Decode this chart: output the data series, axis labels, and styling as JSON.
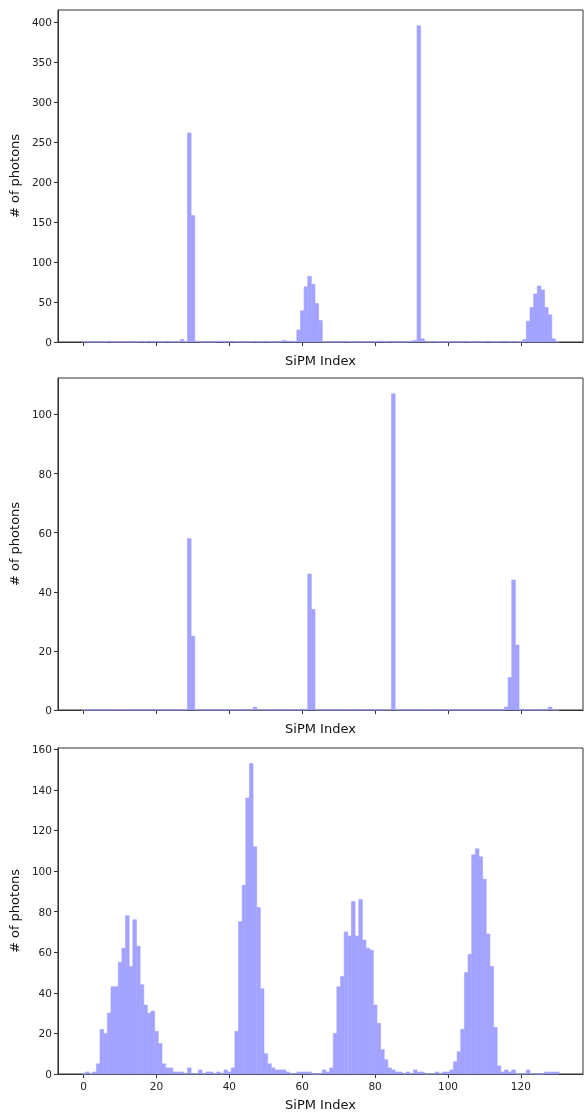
{
  "chart_data": [
    {
      "type": "histogram",
      "xlabel": "SiPM Index",
      "ylabel": "# of photons",
      "color": "#a3a3ff",
      "grid": false,
      "tick_labels": "y",
      "xlim": [
        -7.05,
        137.05
      ],
      "xticks": [
        0,
        20,
        40,
        60,
        80,
        100,
        120
      ],
      "ylim": [
        0,
        414.75
      ],
      "yticks": [
        0,
        50,
        100,
        150,
        200,
        250,
        300,
        350,
        400
      ],
      "bins": [
        -0.5,
        0.5,
        1.5,
        2.5,
        3.5,
        4.5,
        5.5,
        6.5,
        7.5,
        8.5,
        9.5,
        10.5,
        11.5,
        12.5,
        13.5,
        14.5,
        15.5,
        16.5,
        17.5,
        18.5,
        19.5,
        20.5,
        21.5,
        22.5,
        23.5,
        24.5,
        25.5,
        26.5,
        27.5,
        28.5,
        29.5,
        30.5,
        31.5,
        32.5,
        33.5,
        34.5,
        35.5,
        36.5,
        37.5,
        38.5,
        39.5,
        40.5,
        41.5,
        42.5,
        43.5,
        44.5,
        45.5,
        46.5,
        47.5,
        48.5,
        49.5,
        50.5,
        51.5,
        52.5,
        53.5,
        54.5,
        55.5,
        56.5,
        57.5,
        58.5,
        59.5,
        60.5,
        61.5,
        62.5,
        63.5,
        64.5,
        65.5,
        66.5,
        67.5,
        68.5,
        69.5,
        70.5,
        71.5,
        72.5,
        73.5,
        74.5,
        75.5,
        76.5,
        77.5,
        78.5,
        79.5,
        80.5,
        81.5,
        82.5,
        83.5,
        84.5,
        85.5,
        86.5,
        87.5,
        88.5,
        89.5,
        90.5,
        91.5,
        92.5,
        93.5,
        94.5,
        95.5,
        96.5,
        97.5,
        98.5,
        99.5,
        100.5,
        101.5,
        102.5,
        103.5,
        104.5,
        105.5,
        106.5,
        107.5,
        108.5,
        109.5,
        110.5,
        111.5,
        112.5,
        113.5,
        114.5,
        115.5,
        116.5,
        117.5,
        118.5,
        119.5,
        120.5,
        121.5,
        122.5,
        123.5,
        124.5,
        125.5,
        126.5,
        127.5,
        128.5,
        129.5,
        130.5
      ],
      "values": [
        1,
        0,
        0,
        0,
        0,
        0,
        0,
        1,
        0,
        0,
        0,
        0,
        0,
        0,
        0,
        0,
        1,
        0,
        1,
        0,
        1,
        0,
        0,
        1,
        0,
        0,
        0,
        3,
        0,
        261,
        158,
        1,
        0,
        0,
        0,
        0,
        0,
        1,
        1,
        0,
        0,
        1,
        0,
        0,
        0,
        0,
        0,
        1,
        0,
        0,
        1,
        0,
        0,
        0,
        0,
        2,
        1,
        1,
        0,
        15,
        39,
        69,
        82,
        72,
        48,
        27,
        0,
        0,
        0,
        0,
        0,
        0,
        1,
        0,
        0,
        0,
        0,
        0,
        0,
        0,
        0,
        1,
        1,
        0,
        1,
        0,
        0,
        0,
        0,
        0,
        1,
        2,
        395,
        4,
        1,
        0,
        1,
        0,
        0,
        0,
        0,
        0,
        0,
        0,
        0,
        1,
        0,
        0,
        0,
        0,
        0,
        1,
        0,
        0,
        0,
        1,
        1,
        0,
        1,
        0,
        0,
        3,
        26,
        43,
        60,
        70,
        65,
        43,
        34,
        4,
        0
      ]
    },
    {
      "type": "histogram",
      "xlabel": "SiPM Index",
      "ylabel": "# of photons",
      "color": "#a3a3ff",
      "grid": false,
      "tick_labels": "y",
      "xlim": [
        -7.05,
        137.05
      ],
      "xticks": [
        0,
        20,
        40,
        60,
        80,
        100,
        120
      ],
      "ylim": [
        0,
        112.35
      ],
      "yticks": [
        0,
        20,
        40,
        60,
        80,
        100
      ],
      "bins": [
        -0.5,
        0.5,
        1.5,
        2.5,
        3.5,
        4.5,
        5.5,
        6.5,
        7.5,
        8.5,
        9.5,
        10.5,
        11.5,
        12.5,
        13.5,
        14.5,
        15.5,
        16.5,
        17.5,
        18.5,
        19.5,
        20.5,
        21.5,
        22.5,
        23.5,
        24.5,
        25.5,
        26.5,
        27.5,
        28.5,
        29.5,
        30.5,
        31.5,
        32.5,
        33.5,
        34.5,
        35.5,
        36.5,
        37.5,
        38.5,
        39.5,
        40.5,
        41.5,
        42.5,
        43.5,
        44.5,
        45.5,
        46.5,
        47.5,
        48.5,
        49.5,
        50.5,
        51.5,
        52.5,
        53.5,
        54.5,
        55.5,
        56.5,
        57.5,
        58.5,
        59.5,
        60.5,
        61.5,
        62.5,
        63.5,
        64.5,
        65.5,
        66.5,
        67.5,
        68.5,
        69.5,
        70.5,
        71.5,
        72.5,
        73.5,
        74.5,
        75.5,
        76.5,
        77.5,
        78.5,
        79.5,
        80.5,
        81.5,
        82.5,
        83.5,
        84.5,
        85.5,
        86.5,
        87.5,
        88.5,
        89.5,
        90.5,
        91.5,
        92.5,
        93.5,
        94.5,
        95.5,
        96.5,
        97.5,
        98.5,
        99.5,
        100.5,
        101.5,
        102.5,
        103.5,
        104.5,
        105.5,
        106.5,
        107.5,
        108.5,
        109.5,
        110.5,
        111.5,
        112.5,
        113.5,
        114.5,
        115.5,
        116.5,
        117.5,
        118.5,
        119.5,
        120.5,
        121.5,
        122.5,
        123.5,
        124.5,
        125.5,
        126.5,
        127.5,
        128.5,
        129.5,
        130.5
      ],
      "values": [
        0,
        0,
        0,
        0,
        0,
        0,
        0,
        0,
        0,
        0,
        0,
        0,
        0,
        0,
        0,
        0,
        0,
        0,
        0,
        0,
        0,
        0,
        0,
        0,
        0,
        0,
        0,
        0,
        0,
        58,
        25,
        0,
        0,
        0,
        0,
        0,
        0,
        0,
        0,
        0,
        0,
        0,
        0,
        0,
        0,
        0,
        0,
        1,
        0,
        0,
        0,
        0,
        0,
        0,
        0,
        0,
        0,
        0,
        0,
        0,
        0,
        0,
        46,
        34,
        0,
        0,
        0,
        0,
        0,
        0,
        0,
        0,
        0,
        0,
        0,
        0,
        0,
        0,
        0,
        0,
        0,
        0,
        0,
        0,
        0,
        107,
        0,
        0,
        0,
        0,
        0,
        0,
        0,
        0,
        0,
        0,
        0,
        0,
        0,
        0,
        0,
        0,
        0,
        0,
        0,
        0,
        0,
        0,
        0,
        0,
        0,
        0,
        0,
        0,
        0,
        0,
        1,
        11,
        44,
        22,
        0,
        0,
        0,
        0,
        0,
        0,
        0,
        0,
        1,
        0,
        0
      ]
    },
    {
      "type": "histogram",
      "xlabel": "SiPM Index",
      "ylabel": "# of photons",
      "color": "#a3a3ff",
      "grid": false,
      "xlim": [
        -7.05,
        137.05
      ],
      "xticks": [
        0,
        20,
        40,
        60,
        80,
        100,
        120
      ],
      "ylim": [
        0,
        160.65
      ],
      "yticks": [
        0,
        20,
        40,
        60,
        80,
        100,
        120,
        140,
        160
      ],
      "bins": [
        -0.5,
        0.5,
        1.5,
        2.5,
        3.5,
        4.5,
        5.5,
        6.5,
        7.5,
        8.5,
        9.5,
        10.5,
        11.5,
        12.5,
        13.5,
        14.5,
        15.5,
        16.5,
        17.5,
        18.5,
        19.5,
        20.5,
        21.5,
        22.5,
        23.5,
        24.5,
        25.5,
        26.5,
        27.5,
        28.5,
        29.5,
        30.5,
        31.5,
        32.5,
        33.5,
        34.5,
        35.5,
        36.5,
        37.5,
        38.5,
        39.5,
        40.5,
        41.5,
        42.5,
        43.5,
        44.5,
        45.5,
        46.5,
        47.5,
        48.5,
        49.5,
        50.5,
        51.5,
        52.5,
        53.5,
        54.5,
        55.5,
        56.5,
        57.5,
        58.5,
        59.5,
        60.5,
        61.5,
        62.5,
        63.5,
        64.5,
        65.5,
        66.5,
        67.5,
        68.5,
        69.5,
        70.5,
        71.5,
        72.5,
        73.5,
        74.5,
        75.5,
        76.5,
        77.5,
        78.5,
        79.5,
        80.5,
        81.5,
        82.5,
        83.5,
        84.5,
        85.5,
        86.5,
        87.5,
        88.5,
        89.5,
        90.5,
        91.5,
        92.5,
        93.5,
        94.5,
        95.5,
        96.5,
        97.5,
        98.5,
        99.5,
        100.5,
        101.5,
        102.5,
        103.5,
        104.5,
        105.5,
        106.5,
        107.5,
        108.5,
        109.5,
        110.5,
        111.5,
        112.5,
        113.5,
        114.5,
        115.5,
        116.5,
        117.5,
        118.5,
        119.5,
        120.5,
        121.5,
        122.5,
        123.5,
        124.5,
        125.5,
        126.5,
        127.5,
        128.5,
        129.5,
        130.5
      ],
      "values": [
        0,
        1,
        0,
        1,
        5,
        22,
        20,
        30,
        43,
        43,
        55,
        62,
        78,
        53,
        76,
        63,
        44,
        34,
        30,
        31,
        21,
        15,
        5,
        3,
        3,
        1,
        1,
        1,
        0,
        3,
        0,
        0,
        2,
        0,
        1,
        1,
        0,
        1,
        0,
        2,
        1,
        3,
        21,
        75,
        93,
        136,
        153,
        112,
        82,
        42,
        10,
        5,
        3,
        2,
        2,
        2,
        1,
        0,
        0,
        1,
        1,
        1,
        1,
        0,
        0,
        0,
        2,
        1,
        3,
        20,
        43,
        48,
        70,
        68,
        85,
        68,
        86,
        66,
        62,
        61,
        34,
        25,
        12,
        7,
        3,
        2,
        1,
        1,
        0,
        1,
        0,
        2,
        1,
        1,
        0,
        0,
        0,
        1,
        0,
        1,
        1,
        2,
        6,
        11,
        22,
        50,
        59,
        108,
        111,
        107,
        96,
        69,
        53,
        23,
        4,
        1,
        2,
        1,
        2,
        0,
        0,
        0,
        2,
        0,
        0,
        0,
        0,
        1,
        1,
        1,
        1
      ]
    }
  ]
}
